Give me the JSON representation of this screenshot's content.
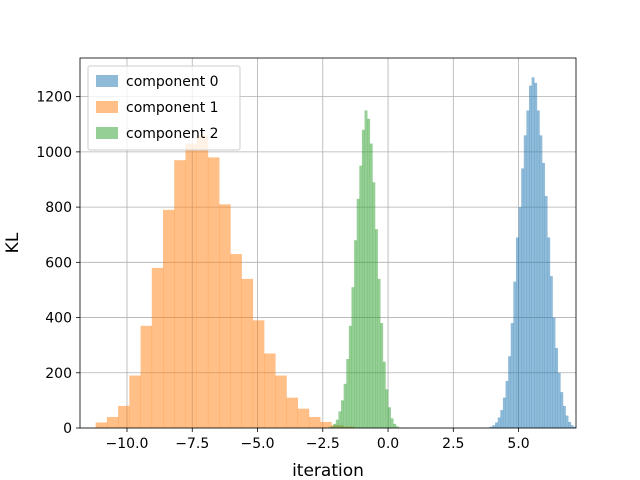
{
  "chart_data": {
    "type": "bar",
    "subtype": "histogram",
    "xlabel": "iteration",
    "ylabel": "KL",
    "xlim": [
      -11.8,
      7.2
    ],
    "ylim": [
      0,
      1340
    ],
    "xticks": [
      -10.0,
      -7.5,
      -5.0,
      -2.5,
      0.0,
      2.5,
      5.0
    ],
    "xtick_labels": [
      "−10.0",
      "−7.5",
      "−5.0",
      "−2.5",
      "0.0",
      "2.5",
      "5.0"
    ],
    "yticks": [
      0,
      200,
      400,
      600,
      800,
      1000,
      1200
    ],
    "ytick_labels": [
      "0",
      "200",
      "400",
      "600",
      "800",
      "1000",
      "1200"
    ],
    "grid": true,
    "legend_position": "top-left",
    "bar_opacity": 0.5,
    "series": [
      {
        "name": "component 0",
        "color": "#1f77b4",
        "bin_start": 3.8,
        "bin_width": 0.1,
        "counts": [
          2,
          5,
          10,
          20,
          38,
          65,
          110,
          170,
          260,
          380,
          530,
          690,
          800,
          940,
          1060,
          1150,
          1240,
          1270,
          1250,
          1150,
          1060,
          960,
          840,
          690,
          550,
          400,
          290,
          200,
          130,
          80,
          45,
          22,
          10,
          4
        ]
      },
      {
        "name": "component 1",
        "color": "#ff7f0e",
        "bin_start": -11.2,
        "bin_width": 0.43,
        "counts": [
          20,
          40,
          80,
          190,
          370,
          580,
          790,
          970,
          1030,
          1060,
          980,
          810,
          630,
          540,
          390,
          270,
          190,
          110,
          70,
          40,
          22,
          10,
          5
        ]
      },
      {
        "name": "component 2",
        "color": "#2ca02c",
        "bin_start": -2.3,
        "bin_width": 0.1,
        "counts": [
          3,
          6,
          15,
          30,
          60,
          100,
          160,
          250,
          370,
          510,
          680,
          830,
          950,
          1080,
          1150,
          1120,
          1030,
          890,
          720,
          540,
          380,
          240,
          140,
          75,
          35,
          15,
          6,
          2
        ]
      }
    ]
  }
}
